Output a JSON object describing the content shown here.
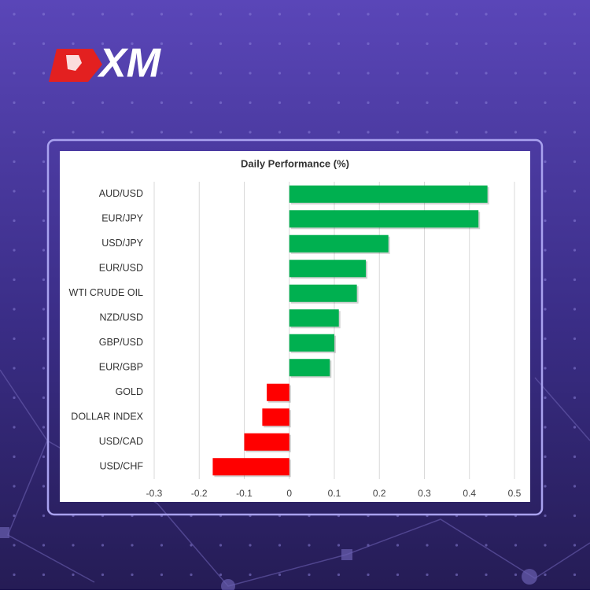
{
  "logo": "XM",
  "chart_data": {
    "type": "barh",
    "title": "Daily Performance  (%)",
    "categories": [
      "AUD/USD",
      "EUR/JPY",
      "USD/JPY",
      "EUR/USD",
      "WTI CRUDE OIL",
      "NZD/USD",
      "GBP/USD",
      "EUR/GBP",
      "GOLD",
      "DOLLAR INDEX",
      "USD/CAD",
      "USD/CHF"
    ],
    "values": [
      0.44,
      0.42,
      0.22,
      0.17,
      0.15,
      0.11,
      0.1,
      0.09,
      -0.05,
      -0.06,
      -0.1,
      -0.17
    ],
    "positive_color": "#00b050",
    "negative_color": "#ff0000",
    "xlim": [
      -0.3,
      0.5
    ],
    "xticks": [
      -0.3,
      -0.2,
      -0.1,
      0,
      0.1,
      0.2,
      0.3,
      0.4,
      0.5
    ],
    "grid": true
  }
}
